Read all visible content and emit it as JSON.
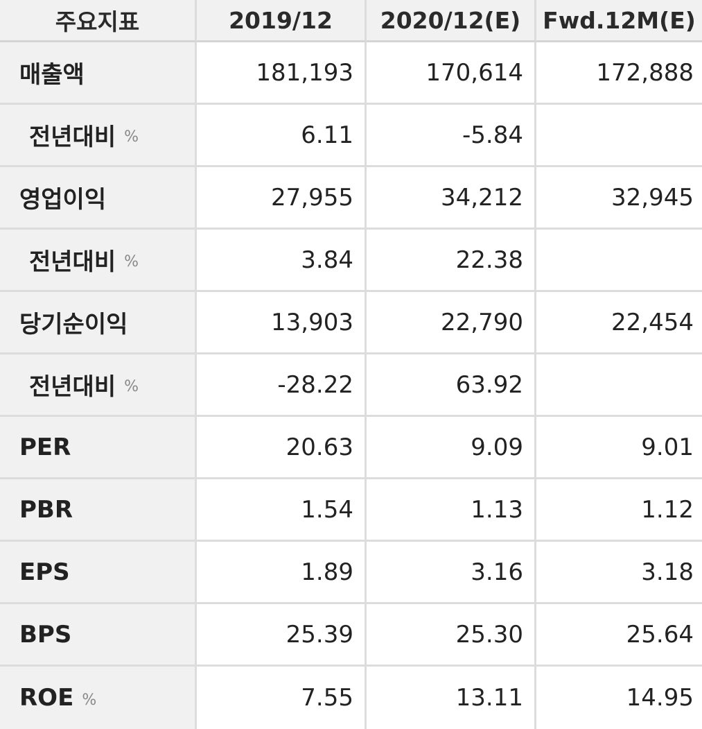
{
  "header": {
    "label": "주요지표",
    "columns": [
      "2019/12",
      "2020/12(E)",
      "Fwd.12M(E)"
    ]
  },
  "rows": [
    {
      "label": "매출액",
      "unit": "",
      "sub": false,
      "values": [
        "181,193",
        "170,614",
        "172,888"
      ]
    },
    {
      "label": "전년대비",
      "unit": "%",
      "sub": true,
      "values": [
        "6.11",
        "-5.84",
        ""
      ]
    },
    {
      "label": "영업이익",
      "unit": "",
      "sub": false,
      "values": [
        "27,955",
        "34,212",
        "32,945"
      ]
    },
    {
      "label": "전년대비",
      "unit": "%",
      "sub": true,
      "values": [
        "3.84",
        "22.38",
        ""
      ]
    },
    {
      "label": "당기순이익",
      "unit": "",
      "sub": false,
      "values": [
        "13,903",
        "22,790",
        "22,454"
      ]
    },
    {
      "label": "전년대비",
      "unit": "%",
      "sub": true,
      "values": [
        "-28.22",
        "63.92",
        ""
      ]
    },
    {
      "label": "PER",
      "unit": "",
      "sub": false,
      "values": [
        "20.63",
        "9.09",
        "9.01"
      ]
    },
    {
      "label": "PBR",
      "unit": "",
      "sub": false,
      "values": [
        "1.54",
        "1.13",
        "1.12"
      ]
    },
    {
      "label": "EPS",
      "unit": "",
      "sub": false,
      "values": [
        "1.89",
        "3.16",
        "3.18"
      ]
    },
    {
      "label": "BPS",
      "unit": "",
      "sub": false,
      "values": [
        "25.39",
        "25.30",
        "25.64"
      ]
    },
    {
      "label": "ROE",
      "unit": "%",
      "sub": false,
      "values": [
        "7.55",
        "13.11",
        "14.95"
      ]
    }
  ]
}
